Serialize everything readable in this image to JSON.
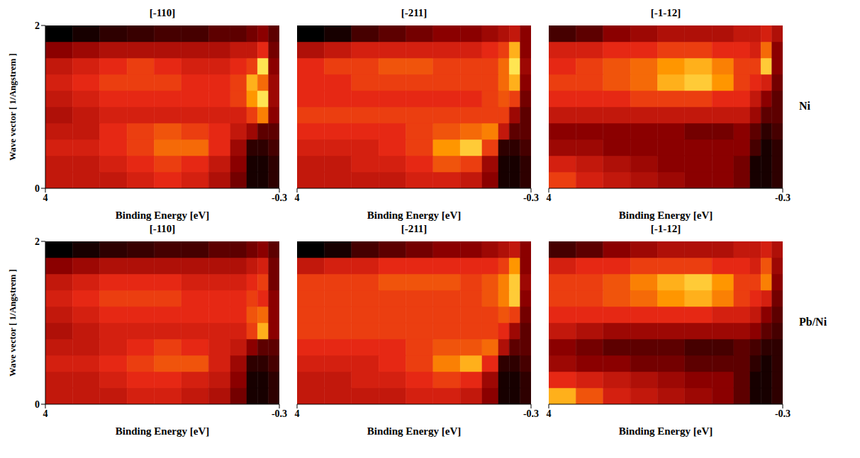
{
  "chart_data": [
    {
      "type": "heatmap",
      "title": "[-110]",
      "xlabel": "Binding Energy [eV]",
      "ylabel": "Wave vector [ 1/Angstrem ]",
      "xlim": [
        4,
        -0.3
      ],
      "xticks": [
        4,
        -0.3
      ],
      "ylim": [
        0,
        2
      ],
      "yticks": [
        0,
        2
      ],
      "zlim": [
        0,
        1
      ],
      "x_bins": [
        4,
        3.5,
        3.0,
        2.5,
        2.0,
        1.5,
        1.0,
        0.6,
        0.3,
        0.1,
        -0.1,
        -0.3
      ],
      "y_bins": [
        0,
        0.2,
        0.4,
        0.6,
        0.8,
        1.0,
        1.2,
        1.4,
        1.6,
        1.8,
        2.0
      ],
      "cells": [
        [
          0.45,
          0.45,
          0.45,
          0.5,
          0.55,
          0.5,
          0.4,
          0.25,
          0.05,
          0.05,
          0.1
        ],
        [
          0.45,
          0.45,
          0.5,
          0.55,
          0.6,
          0.55,
          0.45,
          0.3,
          0.05,
          0.05,
          0.1
        ],
        [
          0.5,
          0.5,
          0.55,
          0.6,
          0.7,
          0.7,
          0.55,
          0.35,
          0.1,
          0.1,
          0.15
        ],
        [
          0.45,
          0.45,
          0.55,
          0.6,
          0.65,
          0.6,
          0.55,
          0.45,
          0.35,
          0.2,
          0.2
        ],
        [
          0.4,
          0.45,
          0.5,
          0.5,
          0.5,
          0.5,
          0.5,
          0.5,
          0.6,
          0.75,
          0.3
        ],
        [
          0.45,
          0.5,
          0.55,
          0.55,
          0.55,
          0.55,
          0.55,
          0.6,
          0.8,
          0.95,
          0.35
        ],
        [
          0.5,
          0.55,
          0.6,
          0.6,
          0.6,
          0.55,
          0.55,
          0.6,
          0.85,
          0.7,
          0.35
        ],
        [
          0.45,
          0.5,
          0.55,
          0.6,
          0.55,
          0.5,
          0.5,
          0.55,
          0.6,
          0.95,
          0.3
        ],
        [
          0.3,
          0.35,
          0.4,
          0.4,
          0.4,
          0.4,
          0.4,
          0.45,
          0.45,
          0.55,
          0.25
        ],
        [
          0.0,
          0.05,
          0.1,
          0.12,
          0.15,
          0.15,
          0.2,
          0.2,
          0.25,
          0.3,
          0.2
        ]
      ]
    },
    {
      "type": "heatmap",
      "title": "[-211]",
      "xlabel": "Binding Energy [eV]",
      "xlim": [
        4,
        -0.3
      ],
      "xticks": [
        4,
        -0.3
      ],
      "ylim": [
        0,
        2
      ],
      "tick_labels": "x",
      "zlim": [
        0,
        1
      ],
      "x_bins": [
        4,
        3.5,
        3.0,
        2.5,
        2.0,
        1.5,
        1.0,
        0.6,
        0.3,
        0.1,
        -0.1,
        -0.3
      ],
      "y_bins": [
        0,
        0.2,
        0.4,
        0.6,
        0.8,
        1.0,
        1.2,
        1.4,
        1.6,
        1.8,
        2.0
      ],
      "cells": [
        [
          0.45,
          0.45,
          0.45,
          0.45,
          0.5,
          0.5,
          0.45,
          0.3,
          0.05,
          0.05,
          0.1
        ],
        [
          0.45,
          0.45,
          0.5,
          0.5,
          0.55,
          0.65,
          0.6,
          0.35,
          0.05,
          0.05,
          0.1
        ],
        [
          0.5,
          0.5,
          0.5,
          0.55,
          0.6,
          0.8,
          0.9,
          0.6,
          0.1,
          0.1,
          0.15
        ],
        [
          0.55,
          0.55,
          0.55,
          0.55,
          0.6,
          0.65,
          0.7,
          0.75,
          0.45,
          0.2,
          0.2
        ],
        [
          0.6,
          0.6,
          0.6,
          0.6,
          0.6,
          0.6,
          0.6,
          0.6,
          0.6,
          0.35,
          0.2
        ],
        [
          0.55,
          0.55,
          0.55,
          0.55,
          0.55,
          0.55,
          0.55,
          0.6,
          0.65,
          0.6,
          0.25
        ],
        [
          0.55,
          0.55,
          0.6,
          0.6,
          0.6,
          0.6,
          0.6,
          0.6,
          0.7,
          0.85,
          0.3
        ],
        [
          0.55,
          0.6,
          0.6,
          0.65,
          0.65,
          0.6,
          0.6,
          0.6,
          0.7,
          0.95,
          0.35
        ],
        [
          0.4,
          0.45,
          0.5,
          0.5,
          0.5,
          0.5,
          0.5,
          0.55,
          0.6,
          0.85,
          0.3
        ],
        [
          0.0,
          0.05,
          0.15,
          0.2,
          0.25,
          0.3,
          0.3,
          0.35,
          0.4,
          0.45,
          0.3
        ]
      ]
    },
    {
      "type": "heatmap",
      "title": "[-1-12]",
      "xlabel": "Binding Energy [eV]",
      "annotation": "Ni",
      "xlim": [
        4,
        -0.3
      ],
      "xticks": [
        4,
        -0.3
      ],
      "ylim": [
        0,
        2
      ],
      "tick_labels": "x",
      "zlim": [
        0,
        1
      ],
      "x_bins": [
        4,
        3.5,
        3.0,
        2.5,
        2.0,
        1.5,
        1.0,
        0.6,
        0.3,
        0.1,
        -0.1,
        -0.3
      ],
      "y_bins": [
        0,
        0.2,
        0.4,
        0.6,
        0.8,
        1.0,
        1.2,
        1.4,
        1.6,
        1.8,
        2.0
      ],
      "cells": [
        [
          0.6,
          0.5,
          0.45,
          0.4,
          0.35,
          0.3,
          0.3,
          0.25,
          0.05,
          0.05,
          0.1
        ],
        [
          0.5,
          0.45,
          0.4,
          0.35,
          0.3,
          0.3,
          0.3,
          0.25,
          0.05,
          0.05,
          0.1
        ],
        [
          0.35,
          0.35,
          0.3,
          0.3,
          0.3,
          0.3,
          0.3,
          0.3,
          0.15,
          0.05,
          0.1
        ],
        [
          0.3,
          0.3,
          0.3,
          0.3,
          0.3,
          0.25,
          0.25,
          0.3,
          0.2,
          0.1,
          0.15
        ],
        [
          0.45,
          0.45,
          0.45,
          0.45,
          0.45,
          0.45,
          0.45,
          0.45,
          0.35,
          0.2,
          0.2
        ],
        [
          0.55,
          0.55,
          0.55,
          0.6,
          0.6,
          0.6,
          0.55,
          0.55,
          0.45,
          0.3,
          0.2
        ],
        [
          0.6,
          0.6,
          0.65,
          0.7,
          0.85,
          0.9,
          0.8,
          0.6,
          0.55,
          0.5,
          0.25
        ],
        [
          0.55,
          0.6,
          0.65,
          0.7,
          0.8,
          0.85,
          0.75,
          0.6,
          0.6,
          0.9,
          0.3
        ],
        [
          0.5,
          0.5,
          0.55,
          0.55,
          0.6,
          0.6,
          0.55,
          0.55,
          0.5,
          0.7,
          0.3
        ],
        [
          0.15,
          0.2,
          0.3,
          0.35,
          0.4,
          0.4,
          0.4,
          0.45,
          0.45,
          0.5,
          0.4
        ]
      ]
    },
    {
      "type": "heatmap",
      "title": "[-110]",
      "xlabel": "Binding Energy [eV]",
      "ylabel": "Wave vector [ 1/Angstrem ]",
      "xlim": [
        4,
        -0.3
      ],
      "xticks": [
        4,
        -0.3
      ],
      "ylim": [
        0,
        2
      ],
      "yticks": [
        0,
        2
      ],
      "zlim": [
        0,
        1
      ],
      "x_bins": [
        4,
        3.5,
        3.0,
        2.5,
        2.0,
        1.5,
        1.0,
        0.6,
        0.3,
        0.1,
        -0.1,
        -0.3
      ],
      "y_bins": [
        0,
        0.2,
        0.4,
        0.6,
        0.8,
        1.0,
        1.2,
        1.4,
        1.6,
        1.8,
        2.0
      ],
      "cells": [
        [
          0.45,
          0.45,
          0.45,
          0.5,
          0.5,
          0.45,
          0.4,
          0.25,
          0.05,
          0.05,
          0.1
        ],
        [
          0.45,
          0.45,
          0.5,
          0.55,
          0.55,
          0.5,
          0.45,
          0.3,
          0.05,
          0.05,
          0.1
        ],
        [
          0.5,
          0.5,
          0.55,
          0.6,
          0.65,
          0.65,
          0.5,
          0.35,
          0.1,
          0.1,
          0.15
        ],
        [
          0.45,
          0.45,
          0.5,
          0.55,
          0.6,
          0.55,
          0.5,
          0.45,
          0.3,
          0.2,
          0.2
        ],
        [
          0.4,
          0.45,
          0.5,
          0.5,
          0.5,
          0.5,
          0.5,
          0.5,
          0.6,
          0.85,
          0.3
        ],
        [
          0.45,
          0.5,
          0.55,
          0.55,
          0.55,
          0.55,
          0.55,
          0.55,
          0.65,
          0.7,
          0.3
        ],
        [
          0.5,
          0.55,
          0.6,
          0.6,
          0.6,
          0.55,
          0.55,
          0.55,
          0.6,
          0.55,
          0.3
        ],
        [
          0.45,
          0.5,
          0.55,
          0.55,
          0.55,
          0.5,
          0.5,
          0.5,
          0.55,
          0.6,
          0.25
        ],
        [
          0.3,
          0.35,
          0.4,
          0.4,
          0.4,
          0.4,
          0.4,
          0.4,
          0.45,
          0.5,
          0.25
        ],
        [
          0.0,
          0.05,
          0.1,
          0.12,
          0.15,
          0.15,
          0.2,
          0.2,
          0.25,
          0.3,
          0.2
        ]
      ]
    },
    {
      "type": "heatmap",
      "title": "[-211]",
      "xlabel": "Binding Energy [eV]",
      "xlim": [
        4,
        -0.3
      ],
      "xticks": [
        4,
        -0.3
      ],
      "ylim": [
        0,
        2
      ],
      "tick_labels": "x",
      "zlim": [
        0,
        1
      ],
      "x_bins": [
        4,
        3.5,
        3.0,
        2.5,
        2.0,
        1.5,
        1.0,
        0.6,
        0.3,
        0.1,
        -0.1,
        -0.3
      ],
      "y_bins": [
        0,
        0.2,
        0.4,
        0.6,
        0.8,
        1.0,
        1.2,
        1.4,
        1.6,
        1.8,
        2.0
      ],
      "cells": [
        [
          0.45,
          0.45,
          0.45,
          0.45,
          0.5,
          0.5,
          0.45,
          0.3,
          0.05,
          0.05,
          0.1
        ],
        [
          0.45,
          0.45,
          0.5,
          0.5,
          0.55,
          0.6,
          0.55,
          0.35,
          0.05,
          0.05,
          0.1
        ],
        [
          0.5,
          0.5,
          0.5,
          0.55,
          0.6,
          0.75,
          0.85,
          0.55,
          0.1,
          0.1,
          0.15
        ],
        [
          0.55,
          0.55,
          0.55,
          0.55,
          0.6,
          0.65,
          0.65,
          0.7,
          0.4,
          0.2,
          0.2
        ],
        [
          0.6,
          0.6,
          0.6,
          0.6,
          0.6,
          0.6,
          0.6,
          0.6,
          0.55,
          0.35,
          0.2
        ],
        [
          0.6,
          0.6,
          0.6,
          0.6,
          0.6,
          0.6,
          0.6,
          0.6,
          0.65,
          0.6,
          0.25
        ],
        [
          0.6,
          0.6,
          0.6,
          0.6,
          0.6,
          0.6,
          0.6,
          0.65,
          0.75,
          0.9,
          0.3
        ],
        [
          0.6,
          0.6,
          0.6,
          0.65,
          0.65,
          0.65,
          0.6,
          0.65,
          0.75,
          0.9,
          0.35
        ],
        [
          0.45,
          0.5,
          0.5,
          0.55,
          0.55,
          0.55,
          0.55,
          0.55,
          0.6,
          0.8,
          0.3
        ],
        [
          0.0,
          0.05,
          0.15,
          0.2,
          0.25,
          0.3,
          0.3,
          0.35,
          0.4,
          0.45,
          0.3
        ]
      ]
    },
    {
      "type": "heatmap",
      "title": "[-1-12]",
      "xlabel": "Binding Energy [eV]",
      "annotation": "Pb/Ni",
      "xlim": [
        4,
        -0.3
      ],
      "xticks": [
        4,
        -0.3
      ],
      "ylim": [
        0,
        2
      ],
      "tick_labels": "x",
      "zlim": [
        0,
        1
      ],
      "x_bins": [
        4,
        3.5,
        3.0,
        2.5,
        2.0,
        1.5,
        1.0,
        0.6,
        0.3,
        0.1,
        -0.1,
        -0.3
      ],
      "y_bins": [
        0,
        0.2,
        0.4,
        0.6,
        0.8,
        1.0,
        1.2,
        1.4,
        1.6,
        1.8,
        2.0
      ],
      "cells": [
        [
          0.85,
          0.65,
          0.5,
          0.45,
          0.4,
          0.35,
          0.3,
          0.2,
          0.05,
          0.05,
          0.1
        ],
        [
          0.55,
          0.5,
          0.45,
          0.4,
          0.35,
          0.3,
          0.3,
          0.2,
          0.05,
          0.05,
          0.1
        ],
        [
          0.35,
          0.3,
          0.3,
          0.25,
          0.25,
          0.2,
          0.2,
          0.2,
          0.1,
          0.05,
          0.1
        ],
        [
          0.3,
          0.25,
          0.2,
          0.2,
          0.2,
          0.15,
          0.15,
          0.2,
          0.15,
          0.1,
          0.1
        ],
        [
          0.45,
          0.4,
          0.35,
          0.35,
          0.35,
          0.35,
          0.35,
          0.35,
          0.3,
          0.2,
          0.15
        ],
        [
          0.55,
          0.55,
          0.55,
          0.55,
          0.55,
          0.55,
          0.5,
          0.5,
          0.45,
          0.3,
          0.2
        ],
        [
          0.6,
          0.6,
          0.65,
          0.7,
          0.8,
          0.85,
          0.75,
          0.6,
          0.55,
          0.5,
          0.25
        ],
        [
          0.6,
          0.6,
          0.65,
          0.75,
          0.85,
          0.9,
          0.8,
          0.6,
          0.6,
          0.75,
          0.3
        ],
        [
          0.5,
          0.55,
          0.55,
          0.6,
          0.6,
          0.6,
          0.55,
          0.55,
          0.5,
          0.65,
          0.35
        ],
        [
          0.15,
          0.2,
          0.3,
          0.35,
          0.4,
          0.4,
          0.4,
          0.45,
          0.45,
          0.5,
          0.4
        ]
      ]
    }
  ]
}
